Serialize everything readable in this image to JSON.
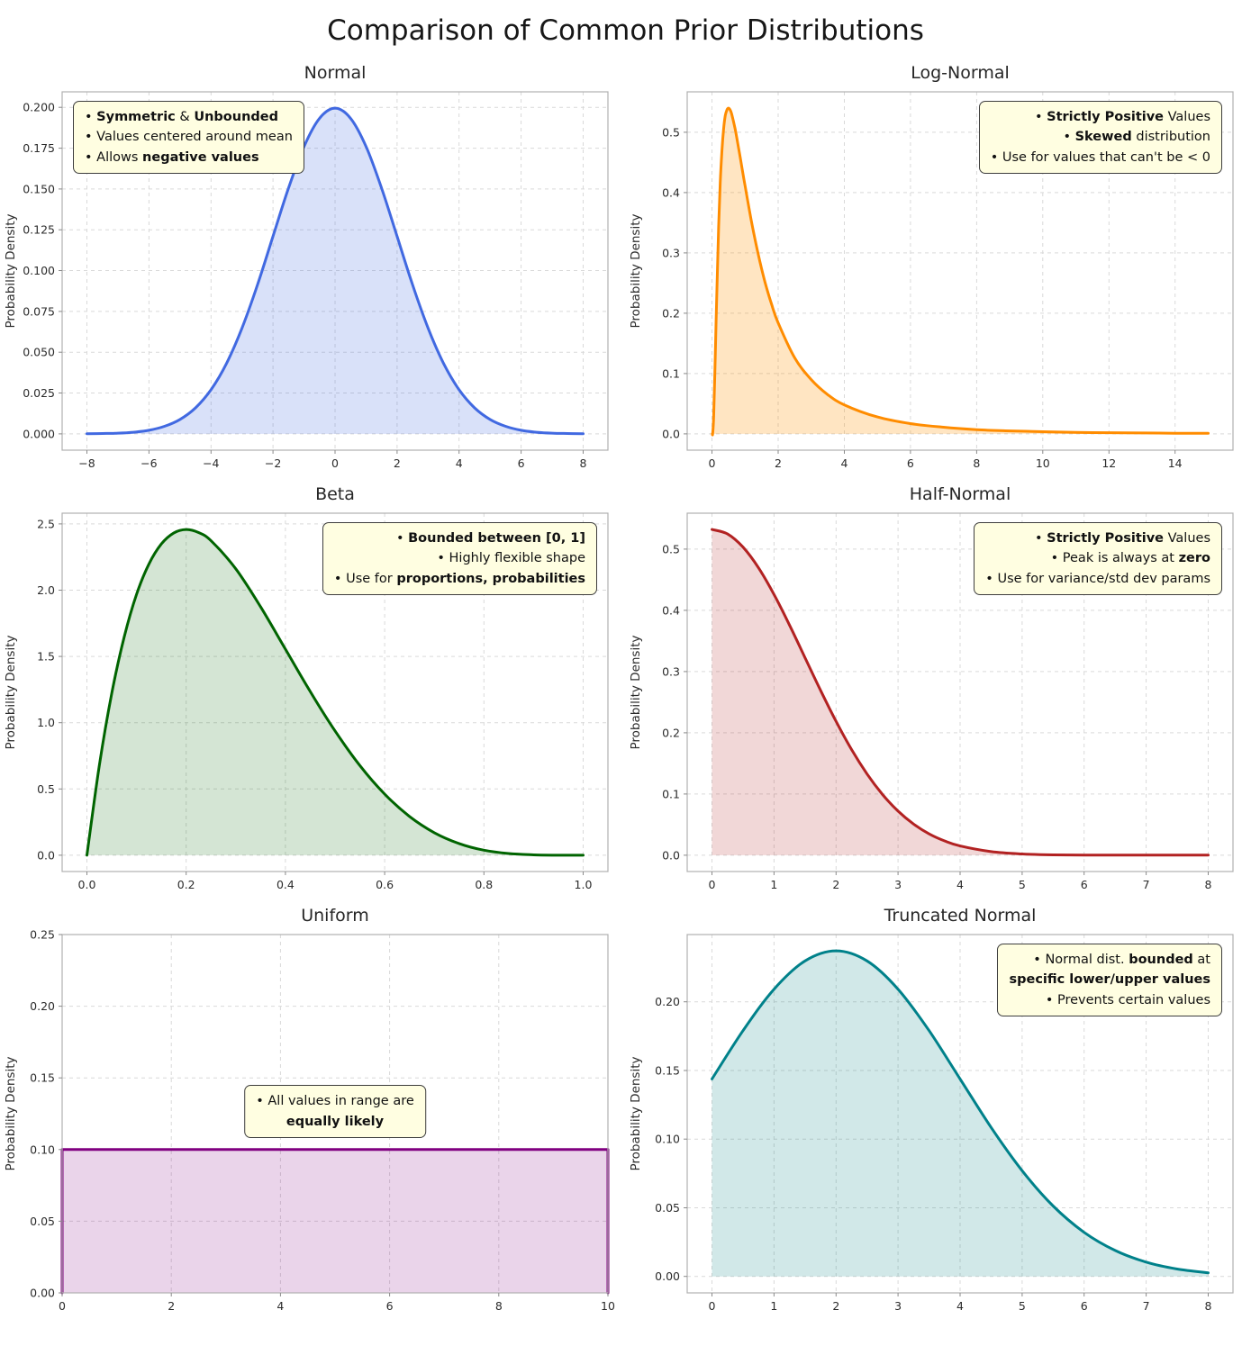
{
  "page_title": "Comparison of Common Prior Distributions",
  "chart_data": [
    {
      "type": "area",
      "title": "Normal",
      "xlabel": "",
      "ylabel": "Probability Density",
      "line_color": "#4169e1",
      "fill_color": "rgba(65,105,225,0.20)",
      "xlim": [
        -8.8,
        8.8
      ],
      "ylim": [
        -0.01,
        0.2095
      ],
      "xticks": [
        -8,
        -6,
        -4,
        -2,
        0,
        2,
        4,
        6,
        8
      ],
      "yticks": [
        0.0,
        0.025,
        0.05,
        0.075,
        0.1,
        0.125,
        0.15,
        0.175,
        0.2
      ],
      "xtick_decimals": 0,
      "ytick_decimals": 3,
      "grid": true,
      "smooth": true,
      "x": [
        -8,
        -7.5,
        -7,
        -6.5,
        -6,
        -5.5,
        -5,
        -4.5,
        -4,
        -3.5,
        -3,
        -2.5,
        -2,
        -1.5,
        -1,
        -0.5,
        0,
        0.5,
        1,
        1.5,
        2,
        2.5,
        3,
        3.5,
        4,
        4.5,
        5,
        5.5,
        6,
        6.5,
        7,
        7.5,
        8
      ],
      "y": [
        0.0001,
        0.0002,
        0.0004,
        0.001,
        0.0022,
        0.0046,
        0.0088,
        0.0159,
        0.027,
        0.0431,
        0.0648,
        0.0913,
        0.121,
        0.1506,
        0.176,
        0.1933,
        0.1995,
        0.1933,
        0.176,
        0.1506,
        0.121,
        0.0913,
        0.0648,
        0.0431,
        0.027,
        0.0159,
        0.0088,
        0.0046,
        0.0022,
        0.001,
        0.0004,
        0.0002,
        0.0001
      ],
      "annotation": {
        "anchor": "top-left",
        "lines": [
          [
            {
              "t": "• ",
              "b": false
            },
            {
              "t": "Symmetric",
              "b": true
            },
            {
              "t": " & ",
              "b": false
            },
            {
              "t": "Unbounded",
              "b": true
            }
          ],
          [
            {
              "t": "• Values centered around mean",
              "b": false
            }
          ],
          [
            {
              "t": "• Allows ",
              "b": false
            },
            {
              "t": "negative values",
              "b": true
            }
          ]
        ]
      }
    },
    {
      "type": "area",
      "title": "Log-Normal",
      "xlabel": "",
      "ylabel": "Probability Density",
      "line_color": "#ff8c00",
      "fill_color": "rgba(255,150,10,0.25)",
      "xlim": [
        -0.75,
        15.75
      ],
      "ylim": [
        -0.027,
        0.567
      ],
      "xticks": [
        0,
        2,
        4,
        6,
        8,
        10,
        12,
        14
      ],
      "yticks": [
        0.0,
        0.1,
        0.2,
        0.3,
        0.4,
        0.5
      ],
      "xtick_decimals": 0,
      "ytick_decimals": 1,
      "grid": true,
      "smooth": true,
      "x": [
        0.01,
        0.02,
        0.05,
        0.1,
        0.15,
        0.2,
        0.25,
        0.3,
        0.35,
        0.4,
        0.45,
        0.5,
        0.55,
        0.6,
        0.7,
        0.8,
        0.9,
        1.0,
        1.2,
        1.4,
        1.6,
        1.8,
        2.0,
        2.5,
        3.0,
        3.5,
        4,
        5,
        6,
        7,
        8,
        9,
        10,
        11,
        12,
        13,
        14,
        15
      ],
      "y": [
        0.0001,
        0.0005,
        0.029,
        0.131,
        0.245,
        0.343,
        0.417,
        0.47,
        0.505,
        0.527,
        0.537,
        0.54,
        0.537,
        0.529,
        0.505,
        0.475,
        0.443,
        0.411,
        0.35,
        0.297,
        0.252,
        0.215,
        0.184,
        0.126,
        0.09,
        0.065,
        0.048,
        0.028,
        0.017,
        0.011,
        0.007,
        0.005,
        0.0036,
        0.0026,
        0.0019,
        0.0015,
        0.0011,
        0.0009
      ],
      "annotation": {
        "anchor": "top-right",
        "lines": [
          [
            {
              "t": "• ",
              "b": false
            },
            {
              "t": "Strictly Positive",
              "b": true
            },
            {
              "t": " Values",
              "b": false
            }
          ],
          [
            {
              "t": "• ",
              "b": false
            },
            {
              "t": "Skewed",
              "b": true
            },
            {
              "t": " distribution",
              "b": false
            }
          ],
          [
            {
              "t": "• Use for values that can't be < 0",
              "b": false
            }
          ]
        ]
      }
    },
    {
      "type": "area",
      "title": "Beta",
      "xlabel": "",
      "ylabel": "Probability Density",
      "line_color": "#006400",
      "fill_color": "rgba(0,100,0,0.17)",
      "xlim": [
        -0.05,
        1.05
      ],
      "ylim": [
        -0.123,
        2.581
      ],
      "xticks": [
        0.0,
        0.2,
        0.4,
        0.6,
        0.8,
        1.0
      ],
      "yticks": [
        0.0,
        0.5,
        1.0,
        1.5,
        2.0,
        2.5
      ],
      "xtick_decimals": 1,
      "ytick_decimals": 1,
      "grid": true,
      "smooth": true,
      "x": [
        0,
        0.025,
        0.05,
        0.075,
        0.1,
        0.125,
        0.15,
        0.175,
        0.2,
        0.225,
        0.25,
        0.3,
        0.35,
        0.4,
        0.45,
        0.5,
        0.55,
        0.6,
        0.65,
        0.7,
        0.75,
        0.8,
        0.85,
        0.9,
        0.95,
        1
      ],
      "y": [
        0,
        0.678,
        1.222,
        1.647,
        1.968,
        2.198,
        2.349,
        2.432,
        2.458,
        2.435,
        2.373,
        2.161,
        1.874,
        1.555,
        1.235,
        0.938,
        0.677,
        0.461,
        0.293,
        0.17,
        0.088,
        0.038,
        0.013,
        0.003,
        0.0002,
        0
      ],
      "annotation": {
        "anchor": "top-right",
        "lines": [
          [
            {
              "t": "• ",
              "b": false
            },
            {
              "t": "Bounded between [0, 1]",
              "b": true
            }
          ],
          [
            {
              "t": "• Highly flexible shape",
              "b": false
            }
          ],
          [
            {
              "t": "• Use for ",
              "b": false
            },
            {
              "t": "proportions, probabilities",
              "b": true
            }
          ]
        ]
      }
    },
    {
      "type": "area",
      "title": "Half-Normal",
      "xlabel": "",
      "ylabel": "Probability Density",
      "line_color": "#b22222",
      "fill_color": "rgba(178,34,34,0.18)",
      "xlim": [
        -0.4,
        8.4
      ],
      "ylim": [
        -0.0266,
        0.5586
      ],
      "xticks": [
        0,
        1,
        2,
        3,
        4,
        5,
        6,
        7,
        8
      ],
      "yticks": [
        0.0,
        0.1,
        0.2,
        0.3,
        0.4,
        0.5
      ],
      "xtick_decimals": 0,
      "ytick_decimals": 1,
      "grid": true,
      "smooth": true,
      "x": [
        0,
        0.25,
        0.5,
        0.75,
        1,
        1.25,
        1.5,
        1.75,
        2,
        2.25,
        2.5,
        2.75,
        3,
        3.25,
        3.5,
        3.75,
        4,
        4.5,
        5,
        5.5,
        6,
        6.5,
        7,
        7.5,
        8
      ],
      "y": [
        0.532,
        0.5246,
        0.5031,
        0.4694,
        0.4259,
        0.3759,
        0.3226,
        0.2693,
        0.2187,
        0.1727,
        0.1327,
        0.0991,
        0.072,
        0.0509,
        0.0349,
        0.0234,
        0.0152,
        0.0059,
        0.0021,
        0.0006,
        0.0002,
        0.0001,
        0.0001,
        0.0001,
        0.0001
      ],
      "annotation": {
        "anchor": "top-right",
        "lines": [
          [
            {
              "t": "• ",
              "b": false
            },
            {
              "t": "Strictly Positive",
              "b": true
            },
            {
              "t": " Values",
              "b": false
            }
          ],
          [
            {
              "t": "• Peak is always at ",
              "b": false
            },
            {
              "t": "zero",
              "b": true
            }
          ],
          [
            {
              "t": "• Use for variance/std dev params",
              "b": false
            }
          ]
        ]
      }
    },
    {
      "type": "area",
      "title": "Uniform",
      "xlabel": "",
      "ylabel": "Probability Density",
      "line_color": "#800080",
      "fill_color": "rgba(128,0,128,0.17)",
      "xlim": [
        0,
        10
      ],
      "ylim": [
        0,
        0.25
      ],
      "xticks": [
        0,
        2,
        4,
        6,
        8,
        10
      ],
      "yticks": [
        0.0,
        0.05,
        0.1,
        0.15,
        0.2,
        0.25
      ],
      "xtick_decimals": 0,
      "ytick_decimals": 2,
      "grid": true,
      "smooth": false,
      "x": [
        0,
        0,
        10,
        10
      ],
      "y": [
        0,
        0.1,
        0.1,
        0
      ],
      "annotation": {
        "anchor": "center",
        "lines": [
          [
            {
              "t": "• All values in range are",
              "b": false
            }
          ],
          [
            {
              "t": "equally likely",
              "b": true
            }
          ]
        ]
      }
    },
    {
      "type": "area",
      "title": "Truncated Normal",
      "xlabel": "",
      "ylabel": "Probability Density",
      "line_color": "#00818a",
      "fill_color": "rgba(0,128,128,0.18)",
      "xlim": [
        -0.4,
        8.4
      ],
      "ylim": [
        -0.012,
        0.249
      ],
      "xticks": [
        0,
        1,
        2,
        3,
        4,
        5,
        6,
        7,
        8
      ],
      "yticks": [
        0.0,
        0.05,
        0.1,
        0.15,
        0.2
      ],
      "xtick_decimals": 0,
      "ytick_decimals": 2,
      "grid": true,
      "smooth": true,
      "x": [
        0,
        0.5,
        1,
        1.5,
        2,
        2.5,
        3,
        3.5,
        4,
        4.5,
        5,
        5.5,
        6,
        6.5,
        7,
        7.5,
        8
      ],
      "y": [
        0.1438,
        0.179,
        0.2092,
        0.2298,
        0.2371,
        0.2298,
        0.2092,
        0.179,
        0.1438,
        0.1085,
        0.077,
        0.0513,
        0.0321,
        0.0189,
        0.0104,
        0.0054,
        0.0026
      ],
      "annotation": {
        "anchor": "top-right",
        "lines": [
          [
            {
              "t": "• Normal dist. ",
              "b": false
            },
            {
              "t": "bounded",
              "b": true
            },
            {
              "t": " at",
              "b": false
            }
          ],
          [
            {
              "t": "specific lower/upper values",
              "b": true
            }
          ],
          [
            {
              "t": "• Prevents certain values",
              "b": false
            }
          ]
        ]
      }
    }
  ]
}
